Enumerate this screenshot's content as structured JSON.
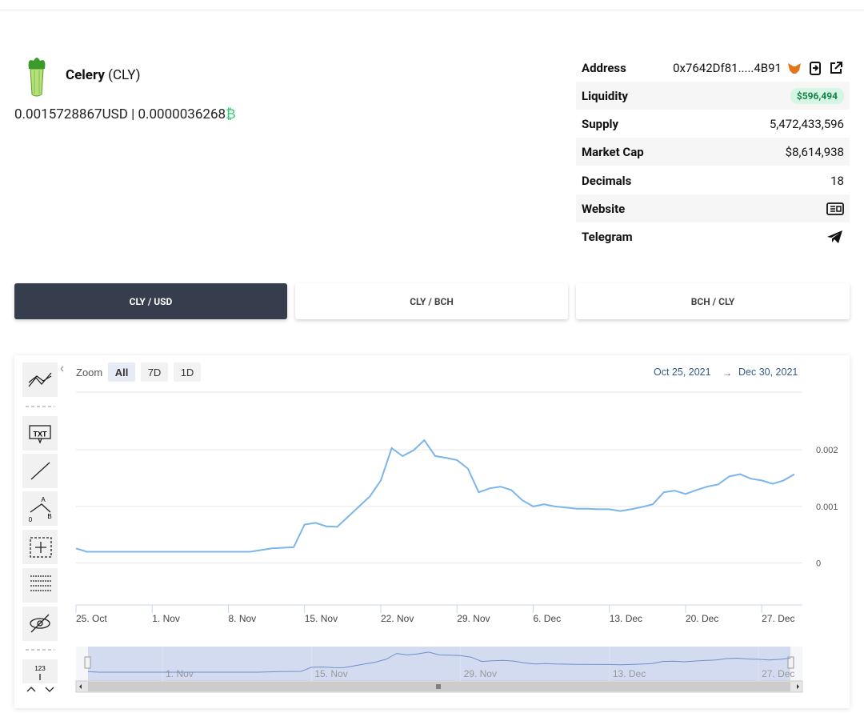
{
  "token": {
    "name": "Celery",
    "symbol": "(CLY)",
    "price_usd": "0.0015728867",
    "usd_unit": "USD",
    "separator": "|",
    "price_bch": "0.0000036268",
    "bch_symbol": "₿"
  },
  "info": {
    "rows": [
      {
        "label": "Address",
        "value": "0x7642Df81.....4B91"
      },
      {
        "label": "Liquidity",
        "value": "$596,494"
      },
      {
        "label": "Supply",
        "value": "5,472,433,596"
      },
      {
        "label": "Market Cap",
        "value": "$8,614,938"
      },
      {
        "label": "Decimals",
        "value": "18"
      },
      {
        "label": "Website"
      },
      {
        "label": "Telegram"
      }
    ]
  },
  "tabs": [
    "CLY / USD",
    "CLY / BCH",
    "BCH / CLY"
  ],
  "toolbar": {
    "text_icon": "TXT",
    "angle_labels": [
      "A",
      "0",
      "B"
    ],
    "numbers_icon": "123"
  },
  "chart_data": {
    "type": "line",
    "zoom_label": "Zoom",
    "zoom_buttons": [
      "All",
      "7D",
      "1D"
    ],
    "range_from": "Oct 25, 2021",
    "range_arrow": "→",
    "range_to": "Dec 30, 2021",
    "x": [
      "2021-10-25",
      "2021-10-26",
      "2021-10-27",
      "2021-10-28",
      "2021-10-29",
      "2021-10-30",
      "2021-10-31",
      "2021-11-01",
      "2021-11-02",
      "2021-11-03",
      "2021-11-04",
      "2021-11-05",
      "2021-11-06",
      "2021-11-07",
      "2021-11-08",
      "2021-11-09",
      "2021-11-10",
      "2021-11-11",
      "2021-11-12",
      "2021-11-13",
      "2021-11-14",
      "2021-11-15",
      "2021-11-16",
      "2021-11-17",
      "2021-11-18",
      "2021-11-19",
      "2021-11-20",
      "2021-11-21",
      "2021-11-22",
      "2021-11-23",
      "2021-11-24",
      "2021-11-25",
      "2021-11-26",
      "2021-11-27",
      "2021-11-28",
      "2021-11-29",
      "2021-11-30",
      "2021-12-01",
      "2021-12-02",
      "2021-12-03",
      "2021-12-04",
      "2021-12-05",
      "2021-12-06",
      "2021-12-07",
      "2021-12-08",
      "2021-12-09",
      "2021-12-10",
      "2021-12-11",
      "2021-12-12",
      "2021-12-13",
      "2021-12-14",
      "2021-12-15",
      "2021-12-16",
      "2021-12-17",
      "2021-12-18",
      "2021-12-19",
      "2021-12-20",
      "2021-12-21",
      "2021-12-22",
      "2021-12-23",
      "2021-12-24",
      "2021-12-25",
      "2021-12-26",
      "2021-12-27",
      "2021-12-28",
      "2021-12-29",
      "2021-12-30"
    ],
    "series": [
      {
        "color": "#7cb5ec",
        "values": [
          0.00026,
          0.0002,
          0.0002,
          0.0002,
          0.0002,
          0.0002,
          0.0002,
          0.0002,
          0.0002,
          0.0002,
          0.0002,
          0.0002,
          0.0002,
          0.0002,
          0.0002,
          0.0002,
          0.0002,
          0.00023,
          0.00026,
          0.00027,
          0.00028,
          0.00068,
          0.00071,
          0.00065,
          0.00064,
          0.00082,
          0.001,
          0.00118,
          0.00146,
          0.00203,
          0.00189,
          0.00199,
          0.00217,
          0.00189,
          0.00186,
          0.00182,
          0.00167,
          0.00125,
          0.00132,
          0.00135,
          0.00129,
          0.00111,
          0.001,
          0.00104,
          0.001,
          0.00098,
          0.00096,
          0.00096,
          0.00095,
          0.00095,
          0.00092,
          0.00095,
          0.00099,
          0.00104,
          0.00125,
          0.00128,
          0.00122,
          0.00129,
          0.00135,
          0.00139,
          0.00153,
          0.00157,
          0.00149,
          0.00146,
          0.0014,
          0.00146,
          0.00157
        ]
      }
    ],
    "xlim": [
      "2021-10-25",
      "2021-12-30"
    ],
    "xticks": [
      {
        "value": "2021-10-25",
        "label": "25. Oct"
      },
      {
        "value": "2021-11-01",
        "label": "1. Nov"
      },
      {
        "value": "2021-11-08",
        "label": "8. Nov"
      },
      {
        "value": "2021-11-15",
        "label": "15. Nov"
      },
      {
        "value": "2021-11-22",
        "label": "22. Nov"
      },
      {
        "value": "2021-11-29",
        "label": "29. Nov"
      },
      {
        "value": "2021-12-06",
        "label": "6. Dec"
      },
      {
        "value": "2021-12-13",
        "label": "13. Dec"
      },
      {
        "value": "2021-12-20",
        "label": "20. Dec"
      },
      {
        "value": "2021-12-27",
        "label": "27. Dec"
      }
    ],
    "ylim": [
      -0.00074,
      0.00302
    ],
    "yticks": [
      0,
      0.001,
      0.002
    ],
    "grid": true,
    "navigator_ticks": [
      {
        "value": "2021-11-01",
        "label": "1. Nov"
      },
      {
        "value": "2021-11-15",
        "label": "15. Nov"
      },
      {
        "value": "2021-11-29",
        "label": "29. Nov"
      },
      {
        "value": "2021-12-13",
        "label": "13. Dec"
      },
      {
        "value": "2021-12-27",
        "label": "27. Dec"
      }
    ]
  }
}
